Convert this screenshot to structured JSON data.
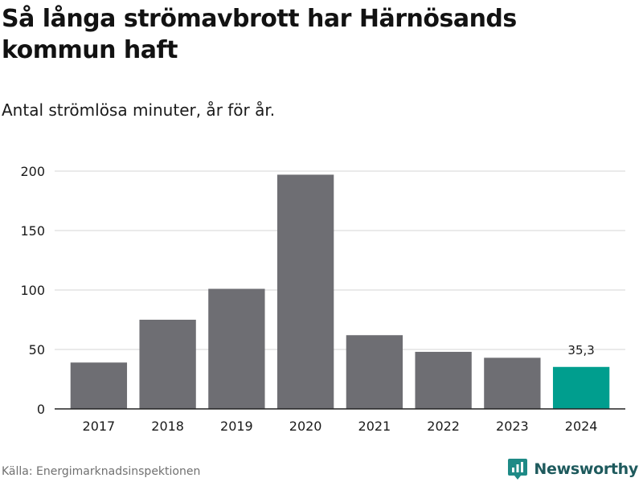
{
  "header": {
    "title": "Så långa strömavbrott har Härnösands kommun haft",
    "subtitle": "Antal strömlösa minuter, år för år."
  },
  "footer": {
    "source": "Källa: Energimarknadsinspektionen",
    "brand": "Newsworthy",
    "brand_icon": "newsworthy-logo-icon"
  },
  "colors": {
    "bar": "#6e6e73",
    "highlight": "#009e8e",
    "grid": "#dddddd",
    "axis": "#222222",
    "text": "#1a1a1a"
  },
  "chart_data": {
    "type": "bar",
    "categories": [
      "2017",
      "2018",
      "2019",
      "2020",
      "2021",
      "2022",
      "2023",
      "2024"
    ],
    "values": [
      39,
      75,
      101,
      197,
      62,
      48,
      43,
      35.3
    ],
    "highlight_index": 7,
    "data_labels": [
      {
        "index": 7,
        "text": "35,3"
      }
    ],
    "yticks": [
      "0",
      "50",
      "100",
      "150",
      "200"
    ],
    "ylim": [
      0,
      200
    ],
    "grid": "horizontal",
    "legend": "none"
  }
}
